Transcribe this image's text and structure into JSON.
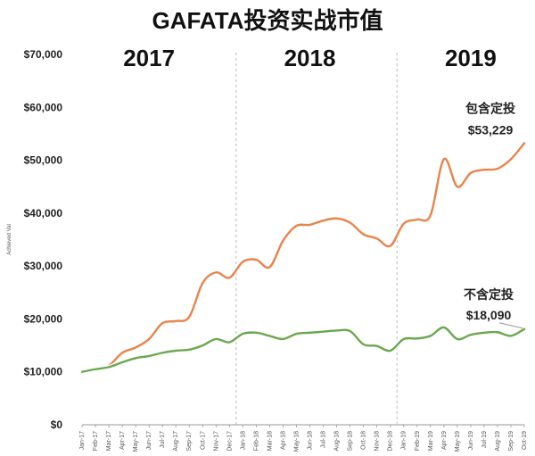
{
  "chart_data": {
    "type": "line",
    "title": "GAFATA投资实战市值",
    "ylabel": "Achieved Val",
    "xlabel": "",
    "ylim": [
      0,
      70000
    ],
    "y_ticks": [
      "$0",
      "$10,000",
      "$20,000",
      "$30,000",
      "$40,000",
      "$50,000",
      "$60,000",
      "$70,000"
    ],
    "y_tick_values": [
      0,
      10000,
      20000,
      30000,
      40000,
      50000,
      60000,
      70000
    ],
    "categories": [
      "Jan-17",
      "Feb-17",
      "Mar-17",
      "Apr-17",
      "May-17",
      "Jun-17",
      "Jul-17",
      "Aug-17",
      "Sep-17",
      "Oct-17",
      "Nov-17",
      "Dec-17",
      "Jan-18",
      "Feb-18",
      "Mar-18",
      "Apr-18",
      "May-18",
      "Jun-18",
      "Jul-18",
      "Aug-18",
      "Sep-18",
      "Oct-18",
      "Nov-18",
      "Dec-18",
      "Jan-19",
      "Feb-19",
      "Mar-19",
      "Apr-19",
      "May-19",
      "Jun-19",
      "Jul-19",
      "Aug-19",
      "Sep-19",
      "Oct-19"
    ],
    "year_labels": [
      {
        "text": "2017",
        "at": "Jun-17"
      },
      {
        "text": "2018",
        "at": "Jun-18"
      },
      {
        "text": "2019",
        "at": "Jun-19"
      }
    ],
    "dividers": [
      "Dec-17",
      "Dec-18"
    ],
    "grid": false,
    "series": [
      {
        "name": "包含定投",
        "color": "#E8834A",
        "values": [
          10000,
          10600,
          11200,
          13600,
          14600,
          16200,
          19200,
          19600,
          20400,
          26800,
          28800,
          27800,
          30800,
          31200,
          29800,
          34800,
          37600,
          37800,
          38600,
          39000,
          38200,
          36000,
          35200,
          33800,
          38000,
          38800,
          39600,
          50200,
          45000,
          47600,
          48200,
          48400,
          50200,
          53229
        ]
      },
      {
        "name": "不含定投",
        "color": "#6AA84F",
        "values": [
          10000,
          10500,
          10900,
          11800,
          12600,
          13000,
          13600,
          14000,
          14200,
          15000,
          16200,
          15600,
          17200,
          17400,
          16800,
          16200,
          17200,
          17400,
          17600,
          17800,
          17700,
          15200,
          14900,
          14000,
          16200,
          16300,
          16800,
          18400,
          16200,
          17000,
          17400,
          17500,
          16800,
          18090
        ]
      }
    ],
    "annotations": [
      {
        "series": "包含定投",
        "label": "包含定投",
        "value_text": "$53,229"
      },
      {
        "series": "不含定投",
        "label": "不含定投",
        "value_text": "$18,090"
      }
    ]
  }
}
